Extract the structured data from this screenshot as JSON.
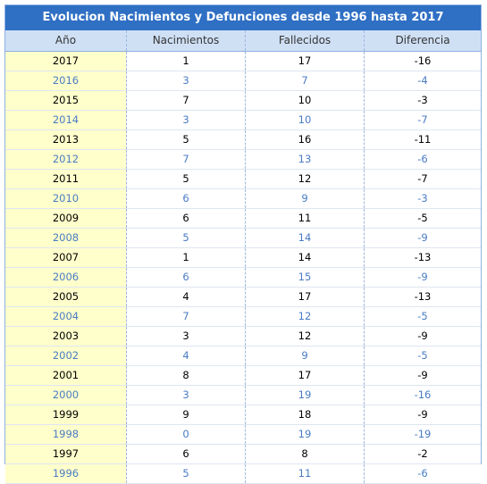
{
  "table": {
    "title": "Evolucion Nacimientos y Defunciones desde 1996 hasta 2017",
    "headers": [
      "Año",
      "Nacimientos",
      "Fallecidos",
      "Diferencia"
    ],
    "rows": [
      [
        "2017",
        "1",
        "17",
        "-16"
      ],
      [
        "2016",
        "3",
        "7",
        "-4"
      ],
      [
        "2015",
        "7",
        "10",
        "-3"
      ],
      [
        "2014",
        "3",
        "10",
        "-7"
      ],
      [
        "2013",
        "5",
        "16",
        "-11"
      ],
      [
        "2012",
        "7",
        "13",
        "-6"
      ],
      [
        "2011",
        "5",
        "12",
        "-7"
      ],
      [
        "2010",
        "6",
        "9",
        "-3"
      ],
      [
        "2009",
        "6",
        "11",
        "-5"
      ],
      [
        "2008",
        "5",
        "14",
        "-9"
      ],
      [
        "2007",
        "1",
        "14",
        "-13"
      ],
      [
        "2006",
        "6",
        "15",
        "-9"
      ],
      [
        "2005",
        "4",
        "17",
        "-13"
      ],
      [
        "2004",
        "7",
        "12",
        "-5"
      ],
      [
        "2003",
        "3",
        "12",
        "-9"
      ],
      [
        "2002",
        "4",
        "9",
        "-5"
      ],
      [
        "2001",
        "8",
        "17",
        "-9"
      ],
      [
        "2000",
        "3",
        "19",
        "-16"
      ],
      [
        "1999",
        "9",
        "18",
        "-9"
      ],
      [
        "1998",
        "0",
        "19",
        "-19"
      ],
      [
        "1997",
        "6",
        "8",
        "-2"
      ],
      [
        "1996",
        "5",
        "11",
        "-6"
      ]
    ]
  },
  "colors": {
    "title_bg": "#2f6fc4",
    "header_bg": "#cfe0f5",
    "year_col_bg": "#ffffcc",
    "alt_text": "#4a7cc3"
  }
}
